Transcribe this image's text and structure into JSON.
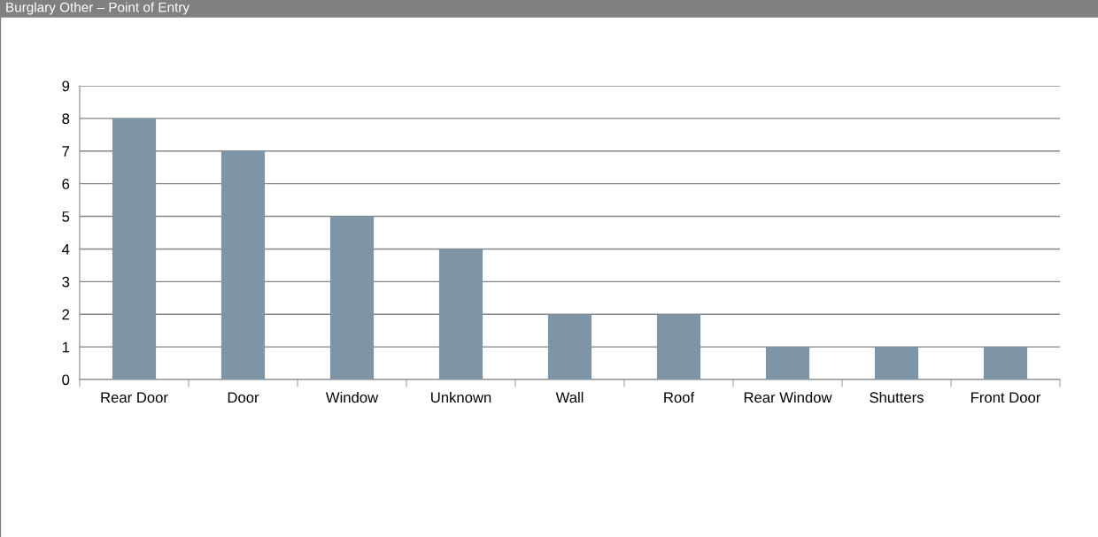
{
  "chart_data": {
    "type": "bar",
    "title": "Burglary Other – Point of Entry",
    "categories": [
      "Rear Door",
      "Door",
      "Window",
      "Unknown",
      "Wall",
      "Roof",
      "Rear Window",
      "Shutters",
      "Front Door"
    ],
    "values": [
      8,
      7,
      5,
      4,
      2,
      2,
      1,
      1,
      1
    ],
    "color": "#7d95a6",
    "ylim": [
      0,
      9
    ],
    "yticks": [
      0,
      1,
      2,
      3,
      4,
      5,
      6,
      7,
      8,
      9
    ],
    "grid": "y",
    "legend": false
  }
}
